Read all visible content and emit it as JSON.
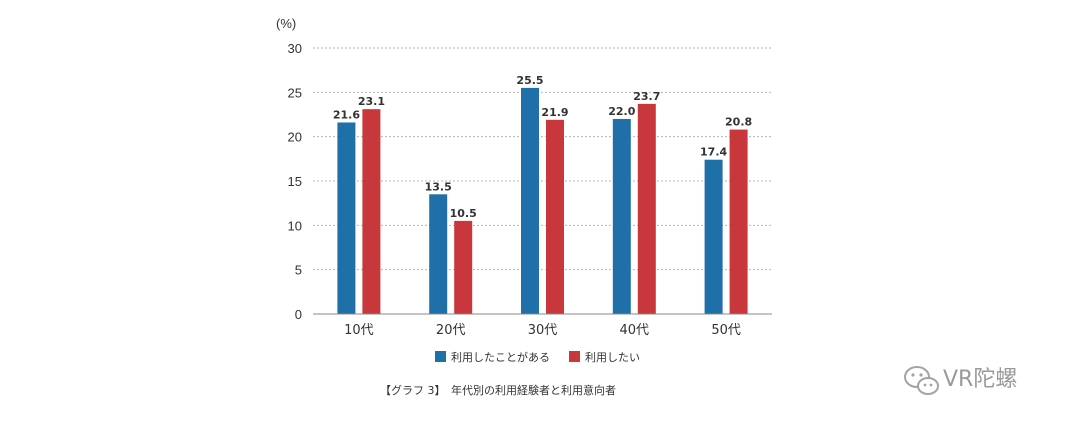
{
  "chart_data": {
    "type": "bar",
    "unit_label": "(%)",
    "categories": [
      "10代",
      "20代",
      "30代",
      "40代",
      "50代"
    ],
    "series": [
      {
        "name": "利用したことがある",
        "color": "#1f6fa9",
        "values": [
          21.6,
          13.5,
          25.5,
          22.0,
          17.4
        ]
      },
      {
        "name": "利用したい",
        "color": "#c8373b",
        "values": [
          23.1,
          10.5,
          21.9,
          23.7,
          20.8
        ]
      }
    ],
    "ylim": [
      0,
      30
    ],
    "yticks": [
      0,
      5,
      10,
      15,
      20,
      25,
      30
    ],
    "grid": true,
    "legend_position": "bottom",
    "caption": "【グラフ 3】　年代別の利用経験者と利用意向者"
  },
  "watermark": {
    "text": "VR陀螺",
    "icon": "wechat-logo-icon"
  }
}
